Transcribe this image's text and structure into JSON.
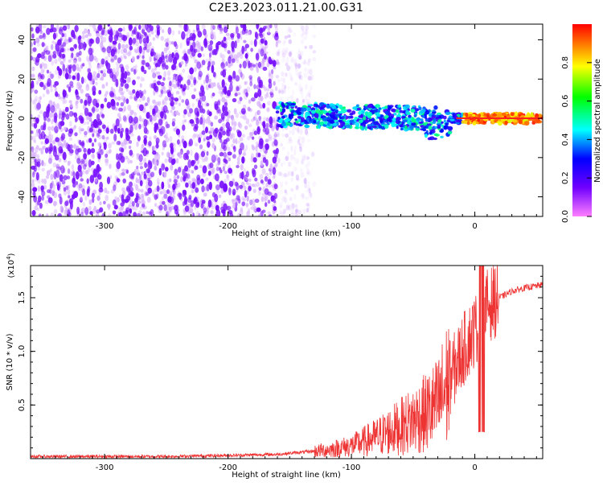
{
  "figure": {
    "title": "C2E3.2023.011.21.00.G31"
  },
  "chart_data": [
    {
      "type": "heatmap",
      "xlabel": "Height of straight line (km)",
      "ylabel": "Frequency (Hz)",
      "xlim": [
        -360,
        55
      ],
      "ylim": [
        -50,
        48
      ],
      "xticks": [
        -300,
        -200,
        -100,
        0
      ],
      "yticks": [
        -40,
        -20,
        0,
        20,
        40
      ],
      "colorbar": {
        "label": "Normalized spectral amplitude",
        "range": [
          0,
          1
        ],
        "ticks": [
          0.0,
          0.2,
          0.4,
          0.6,
          0.8
        ],
        "colors": [
          "#ff80ff",
          "#7000ff",
          "#0000ff",
          "#00ffff",
          "#00ff00",
          "#ffff00",
          "#ff0000"
        ]
      },
      "features": {
        "noise_region_x": [
          -360,
          -160
        ],
        "signal_band_x": [
          -160,
          55
        ],
        "signal_center_hz": 0,
        "strong_amplitude_x": [
          -10,
          55
        ]
      }
    },
    {
      "type": "line",
      "xlabel": "Height of straight line (km)",
      "ylabel": "SNR (10 * v/v)",
      "yscale_label": "(x10",
      "yscale_exp": "4",
      "yscale_close": ")",
      "xlim": [
        -360,
        55
      ],
      "ylim": [
        0,
        1.8
      ],
      "xticks": [
        -300,
        -200,
        -100,
        0
      ],
      "yticks": [
        0.5,
        1.0,
        1.5
      ],
      "ytick_labels": [
        "0.5",
        "1.0",
        "1.5"
      ],
      "color": "#ee3333",
      "series": [
        {
          "x": [
            -360,
            -300,
            -250,
            -200,
            -160,
            -140,
            -120,
            -100,
            -80,
            -60,
            -40,
            -30,
            -20,
            -10,
            0,
            5,
            10,
            20,
            30,
            40,
            55
          ],
          "values": [
            0.02,
            0.02,
            0.02,
            0.03,
            0.04,
            0.06,
            0.08,
            0.12,
            0.2,
            0.3,
            0.42,
            0.5,
            0.75,
            1.0,
            1.2,
            1.3,
            1.42,
            1.5,
            1.56,
            1.59,
            1.62
          ]
        }
      ]
    }
  ]
}
